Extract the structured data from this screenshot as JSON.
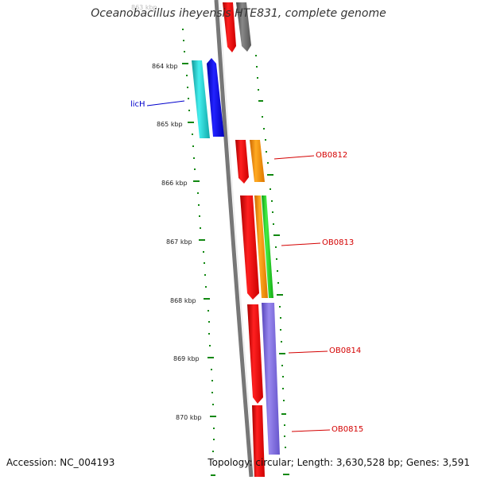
{
  "title": "Oceanobacillus iheyensis HTE831, complete genome",
  "footer": {
    "accession": "Accession: NC_004193",
    "topology": "Topology: circular; Length: 3,630,528 bp; Genes: 3,591"
  },
  "ruler_labels": [
    "863 kbp",
    "864 kbp",
    "865 kbp",
    "866 kbp",
    "867 kbp",
    "868 kbp",
    "869 kbp",
    "870 kbp"
  ],
  "gene_labels": [
    {
      "text": "licH",
      "color": "#0000cc"
    },
    {
      "text": "OB0812",
      "color": "#d40000"
    },
    {
      "text": "OB0813",
      "color": "#d40000"
    },
    {
      "text": "OB0814",
      "color": "#d40000"
    },
    {
      "text": "OB0815",
      "color": "#d40000"
    }
  ],
  "colors": {
    "ruler": "#118811",
    "backbone": "#888888",
    "cds_red": "#ff0000",
    "cds_gray": "#666666",
    "cds_blue": "#0000ee",
    "cds_cyan": "#22cccc",
    "cds_orange": "#ff8800",
    "cds_green": "#22cc22",
    "cds_purple": "#7766dd"
  }
}
